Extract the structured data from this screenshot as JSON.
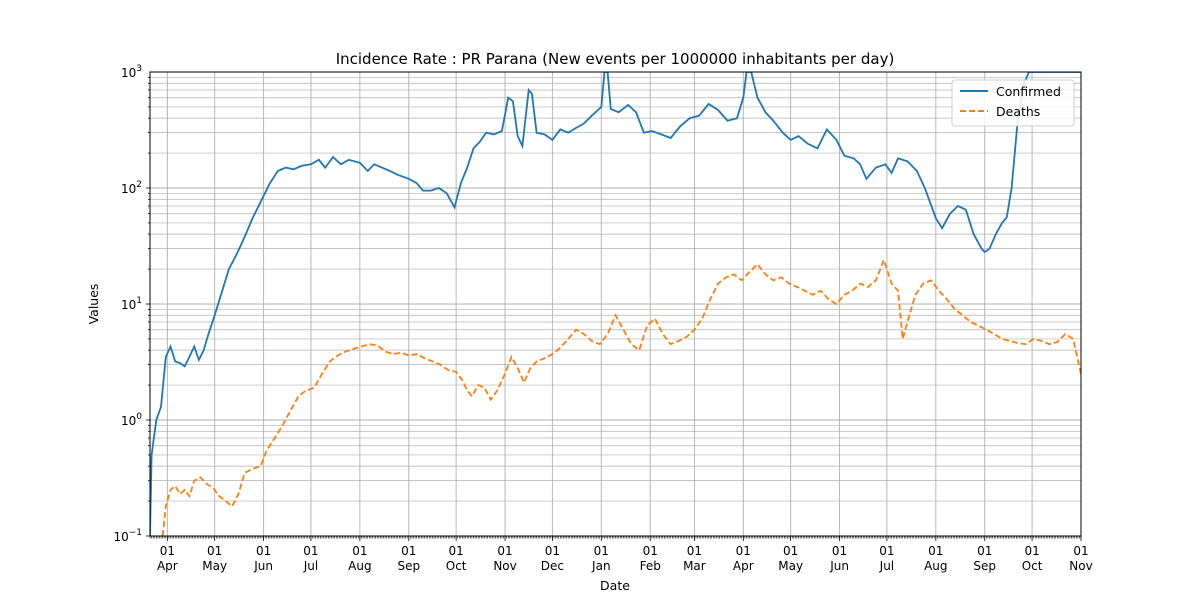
{
  "chart_data": {
    "type": "line",
    "title": "Incidence Rate : PR Parana (New events per 1000000 inhabitants per day)",
    "xlabel": "Date",
    "ylabel": "Values",
    "yscale": "log",
    "ylim": [
      0.1,
      1000
    ],
    "xlim": [
      "2020-03-21",
      "2021-11-01"
    ],
    "grid": true,
    "legend_position": "top-right",
    "y_ticks": [
      {
        "value": 0.1,
        "base": "10",
        "exp": "−1"
      },
      {
        "value": 1,
        "base": "10",
        "exp": "0"
      },
      {
        "value": 10,
        "base": "10",
        "exp": "1"
      },
      {
        "value": 100,
        "base": "10",
        "exp": "2"
      },
      {
        "value": 1000,
        "base": "10",
        "exp": "3"
      }
    ],
    "x_ticks": [
      {
        "date": "2020-04-01",
        "day": "01",
        "month": "Apr"
      },
      {
        "date": "2020-05-01",
        "day": "01",
        "month": "May"
      },
      {
        "date": "2020-06-01",
        "day": "01",
        "month": "Jun"
      },
      {
        "date": "2020-07-01",
        "day": "01",
        "month": "Jul"
      },
      {
        "date": "2020-08-01",
        "day": "01",
        "month": "Aug"
      },
      {
        "date": "2020-09-01",
        "day": "01",
        "month": "Sep"
      },
      {
        "date": "2020-10-01",
        "day": "01",
        "month": "Oct"
      },
      {
        "date": "2020-11-01",
        "day": "01",
        "month": "Nov"
      },
      {
        "date": "2020-12-01",
        "day": "01",
        "month": "Dec"
      },
      {
        "date": "2021-01-01",
        "day": "01",
        "month": "Jan"
      },
      {
        "date": "2021-02-01",
        "day": "01",
        "month": "Feb"
      },
      {
        "date": "2021-03-01",
        "day": "01",
        "month": "Mar"
      },
      {
        "date": "2021-04-01",
        "day": "01",
        "month": "Apr"
      },
      {
        "date": "2021-05-01",
        "day": "01",
        "month": "May"
      },
      {
        "date": "2021-06-01",
        "day": "01",
        "month": "Jun"
      },
      {
        "date": "2021-07-01",
        "day": "01",
        "month": "Jul"
      },
      {
        "date": "2021-08-01",
        "day": "01",
        "month": "Aug"
      },
      {
        "date": "2021-09-01",
        "day": "01",
        "month": "Sep"
      },
      {
        "date": "2021-10-01",
        "day": "01",
        "month": "Oct"
      },
      {
        "date": "2021-11-01",
        "day": "01",
        "month": "Nov"
      }
    ],
    "series": [
      {
        "name": "Confirmed",
        "color": "#1f77b4",
        "dash": "solid",
        "points": [
          [
            "2020-03-21",
            0.1
          ],
          [
            "2020-03-22",
            0.5
          ],
          [
            "2020-03-25",
            1.0
          ],
          [
            "2020-03-28",
            1.3
          ],
          [
            "2020-03-31",
            3.5
          ],
          [
            "2020-04-03",
            4.3
          ],
          [
            "2020-04-06",
            3.2
          ],
          [
            "2020-04-09",
            3.1
          ],
          [
            "2020-04-12",
            2.9
          ],
          [
            "2020-04-15",
            3.5
          ],
          [
            "2020-04-18",
            4.3
          ],
          [
            "2020-04-21",
            3.3
          ],
          [
            "2020-04-24",
            4.0
          ],
          [
            "2020-04-27",
            5.5
          ],
          [
            "2020-05-01",
            8.0
          ],
          [
            "2020-05-05",
            12
          ],
          [
            "2020-05-10",
            20
          ],
          [
            "2020-05-15",
            27
          ],
          [
            "2020-05-20",
            38
          ],
          [
            "2020-05-25",
            55
          ],
          [
            "2020-05-31",
            80
          ],
          [
            "2020-06-05",
            110
          ],
          [
            "2020-06-10",
            140
          ],
          [
            "2020-06-15",
            150
          ],
          [
            "2020-06-20",
            145
          ],
          [
            "2020-06-25",
            155
          ],
          [
            "2020-07-01",
            160
          ],
          [
            "2020-07-06",
            175
          ],
          [
            "2020-07-10",
            150
          ],
          [
            "2020-07-15",
            185
          ],
          [
            "2020-07-20",
            160
          ],
          [
            "2020-07-25",
            175
          ],
          [
            "2020-08-01",
            165
          ],
          [
            "2020-08-06",
            140
          ],
          [
            "2020-08-10",
            160
          ],
          [
            "2020-08-15",
            150
          ],
          [
            "2020-08-20",
            140
          ],
          [
            "2020-08-25",
            130
          ],
          [
            "2020-09-01",
            120
          ],
          [
            "2020-09-06",
            110
          ],
          [
            "2020-09-10",
            95
          ],
          [
            "2020-09-15",
            95
          ],
          [
            "2020-09-20",
            100
          ],
          [
            "2020-09-25",
            90
          ],
          [
            "2020-09-30",
            68
          ],
          [
            "2020-10-04",
            110
          ],
          [
            "2020-10-08",
            150
          ],
          [
            "2020-10-12",
            220
          ],
          [
            "2020-10-16",
            250
          ],
          [
            "2020-10-20",
            300
          ],
          [
            "2020-10-25",
            290
          ],
          [
            "2020-10-30",
            310
          ],
          [
            "2020-11-03",
            600
          ],
          [
            "2020-11-06",
            560
          ],
          [
            "2020-11-09",
            280
          ],
          [
            "2020-11-12",
            230
          ],
          [
            "2020-11-16",
            700
          ],
          [
            "2020-11-18",
            650
          ],
          [
            "2020-11-21",
            300
          ],
          [
            "2020-11-26",
            290
          ],
          [
            "2020-12-01",
            260
          ],
          [
            "2020-12-06",
            320
          ],
          [
            "2020-12-11",
            300
          ],
          [
            "2020-12-16",
            330
          ],
          [
            "2020-12-21",
            360
          ],
          [
            "2020-12-26",
            420
          ],
          [
            "2021-01-01",
            500
          ],
          [
            "2021-01-03",
            1000
          ],
          [
            "2021-01-05",
            1000
          ],
          [
            "2021-01-07",
            480
          ],
          [
            "2021-01-12",
            450
          ],
          [
            "2021-01-18",
            520
          ],
          [
            "2021-01-23",
            450
          ],
          [
            "2021-01-28",
            300
          ],
          [
            "2021-02-02",
            310
          ],
          [
            "2021-02-08",
            290
          ],
          [
            "2021-02-14",
            270
          ],
          [
            "2021-02-20",
            340
          ],
          [
            "2021-02-26",
            400
          ],
          [
            "2021-03-04",
            420
          ],
          [
            "2021-03-10",
            530
          ],
          [
            "2021-03-16",
            470
          ],
          [
            "2021-03-22",
            380
          ],
          [
            "2021-03-28",
            400
          ],
          [
            "2021-04-01",
            600
          ],
          [
            "2021-04-03",
            1000
          ],
          [
            "2021-04-06",
            1000
          ],
          [
            "2021-04-10",
            600
          ],
          [
            "2021-04-15",
            450
          ],
          [
            "2021-04-20",
            380
          ],
          [
            "2021-04-26",
            300
          ],
          [
            "2021-05-01",
            260
          ],
          [
            "2021-05-06",
            280
          ],
          [
            "2021-05-12",
            240
          ],
          [
            "2021-05-18",
            220
          ],
          [
            "2021-05-24",
            320
          ],
          [
            "2021-05-30",
            260
          ],
          [
            "2021-06-04",
            190
          ],
          [
            "2021-06-10",
            180
          ],
          [
            "2021-06-14",
            160
          ],
          [
            "2021-06-18",
            120
          ],
          [
            "2021-06-24",
            150
          ],
          [
            "2021-06-30",
            160
          ],
          [
            "2021-07-04",
            135
          ],
          [
            "2021-07-08",
            180
          ],
          [
            "2021-07-14",
            170
          ],
          [
            "2021-07-20",
            140
          ],
          [
            "2021-07-25",
            100
          ],
          [
            "2021-08-01",
            55
          ],
          [
            "2021-08-05",
            45
          ],
          [
            "2021-08-10",
            60
          ],
          [
            "2021-08-15",
            70
          ],
          [
            "2021-08-20",
            65
          ],
          [
            "2021-08-25",
            40
          ],
          [
            "2021-08-30",
            30
          ],
          [
            "2021-09-01",
            28
          ],
          [
            "2021-09-04",
            30
          ],
          [
            "2021-09-08",
            40
          ],
          [
            "2021-09-12",
            50
          ],
          [
            "2021-09-15",
            56
          ],
          [
            "2021-09-18",
            100
          ],
          [
            "2021-09-22",
            400
          ],
          [
            "2021-09-26",
            800
          ],
          [
            "2021-09-29",
            1000
          ],
          [
            "2021-10-01",
            1000
          ],
          [
            "2021-11-01",
            1000
          ]
        ]
      },
      {
        "name": "Deaths",
        "color": "#ff7f0e",
        "dash": "dashed",
        "points": [
          [
            "2020-03-29",
            0.1
          ],
          [
            "2020-03-31",
            0.18
          ],
          [
            "2020-04-03",
            0.25
          ],
          [
            "2020-04-06",
            0.27
          ],
          [
            "2020-04-09",
            0.23
          ],
          [
            "2020-04-12",
            0.25
          ],
          [
            "2020-04-15",
            0.22
          ],
          [
            "2020-04-18",
            0.3
          ],
          [
            "2020-04-22",
            0.32
          ],
          [
            "2020-04-26",
            0.28
          ],
          [
            "2020-04-30",
            0.26
          ],
          [
            "2020-05-04",
            0.22
          ],
          [
            "2020-05-08",
            0.2
          ],
          [
            "2020-05-12",
            0.18
          ],
          [
            "2020-05-16",
            0.23
          ],
          [
            "2020-05-20",
            0.35
          ],
          [
            "2020-05-25",
            0.38
          ],
          [
            "2020-05-30",
            0.4
          ],
          [
            "2020-06-03",
            0.55
          ],
          [
            "2020-06-08",
            0.7
          ],
          [
            "2020-06-13",
            0.9
          ],
          [
            "2020-06-18",
            1.2
          ],
          [
            "2020-06-23",
            1.6
          ],
          [
            "2020-06-28",
            1.8
          ],
          [
            "2020-07-03",
            1.9
          ],
          [
            "2020-07-08",
            2.5
          ],
          [
            "2020-07-13",
            3.2
          ],
          [
            "2020-07-18",
            3.6
          ],
          [
            "2020-07-23",
            3.9
          ],
          [
            "2020-07-28",
            4.1
          ],
          [
            "2020-08-02",
            4.3
          ],
          [
            "2020-08-07",
            4.5
          ],
          [
            "2020-08-12",
            4.4
          ],
          [
            "2020-08-17",
            3.9
          ],
          [
            "2020-08-22",
            3.7
          ],
          [
            "2020-08-27",
            3.8
          ],
          [
            "2020-09-01",
            3.6
          ],
          [
            "2020-09-06",
            3.7
          ],
          [
            "2020-09-11",
            3.4
          ],
          [
            "2020-09-16",
            3.2
          ],
          [
            "2020-09-21",
            3.0
          ],
          [
            "2020-09-26",
            2.7
          ],
          [
            "2020-10-01",
            2.6
          ],
          [
            "2020-10-05",
            2.2
          ],
          [
            "2020-10-08",
            1.8
          ],
          [
            "2020-10-11",
            1.6
          ],
          [
            "2020-10-15",
            2.0
          ],
          [
            "2020-10-19",
            1.9
          ],
          [
            "2020-10-23",
            1.5
          ],
          [
            "2020-10-27",
            1.8
          ],
          [
            "2020-11-01",
            2.5
          ],
          [
            "2020-11-05",
            3.5
          ],
          [
            "2020-11-09",
            2.8
          ],
          [
            "2020-11-13",
            2.1
          ],
          [
            "2020-11-17",
            2.8
          ],
          [
            "2020-11-21",
            3.2
          ],
          [
            "2020-11-26",
            3.4
          ],
          [
            "2020-12-01",
            3.7
          ],
          [
            "2020-12-06",
            4.2
          ],
          [
            "2020-12-11",
            5.0
          ],
          [
            "2020-12-16",
            6.0
          ],
          [
            "2020-12-21",
            5.5
          ],
          [
            "2020-12-26",
            4.8
          ],
          [
            "2020-12-31",
            4.5
          ],
          [
            "2021-01-05",
            5.5
          ],
          [
            "2021-01-10",
            8.0
          ],
          [
            "2021-01-15",
            6.0
          ],
          [
            "2021-01-20",
            4.5
          ],
          [
            "2021-01-25",
            4.0
          ],
          [
            "2021-01-30",
            6.5
          ],
          [
            "2021-02-04",
            7.5
          ],
          [
            "2021-02-09",
            5.5
          ],
          [
            "2021-02-14",
            4.5
          ],
          [
            "2021-02-19",
            4.8
          ],
          [
            "2021-02-24",
            5.2
          ],
          [
            "2021-03-01",
            6.0
          ],
          [
            "2021-03-06",
            7.5
          ],
          [
            "2021-03-11",
            11
          ],
          [
            "2021-03-16",
            15
          ],
          [
            "2021-03-21",
            17
          ],
          [
            "2021-03-26",
            18
          ],
          [
            "2021-03-31",
            16
          ],
          [
            "2021-04-05",
            19
          ],
          [
            "2021-04-10",
            22
          ],
          [
            "2021-04-15",
            18
          ],
          [
            "2021-04-20",
            16
          ],
          [
            "2021-04-25",
            17
          ],
          [
            "2021-04-30",
            15
          ],
          [
            "2021-05-05",
            14
          ],
          [
            "2021-05-10",
            13
          ],
          [
            "2021-05-15",
            12
          ],
          [
            "2021-05-20",
            13
          ],
          [
            "2021-05-25",
            11
          ],
          [
            "2021-05-30",
            10
          ],
          [
            "2021-06-04",
            12
          ],
          [
            "2021-06-09",
            13
          ],
          [
            "2021-06-14",
            15
          ],
          [
            "2021-06-19",
            14
          ],
          [
            "2021-06-24",
            16
          ],
          [
            "2021-06-29",
            24
          ],
          [
            "2021-07-04",
            15
          ],
          [
            "2021-07-08",
            13
          ],
          [
            "2021-07-11",
            5.0
          ],
          [
            "2021-07-14",
            7.0
          ],
          [
            "2021-07-19",
            12
          ],
          [
            "2021-07-24",
            15
          ],
          [
            "2021-07-29",
            16
          ],
          [
            "2021-08-03",
            13
          ],
          [
            "2021-08-08",
            11
          ],
          [
            "2021-08-13",
            9
          ],
          [
            "2021-08-18",
            8
          ],
          [
            "2021-08-23",
            7
          ],
          [
            "2021-08-28",
            6.5
          ],
          [
            "2021-09-02",
            6
          ],
          [
            "2021-09-07",
            5.5
          ],
          [
            "2021-09-12",
            5
          ],
          [
            "2021-09-17",
            4.8
          ],
          [
            "2021-09-22",
            4.6
          ],
          [
            "2021-09-27",
            4.5
          ],
          [
            "2021-10-02",
            5.0
          ],
          [
            "2021-10-07",
            4.8
          ],
          [
            "2021-10-12",
            4.5
          ],
          [
            "2021-10-17",
            4.7
          ],
          [
            "2021-10-22",
            5.5
          ],
          [
            "2021-10-27",
            5.0
          ],
          [
            "2021-11-01",
            2.5
          ]
        ]
      }
    ]
  }
}
